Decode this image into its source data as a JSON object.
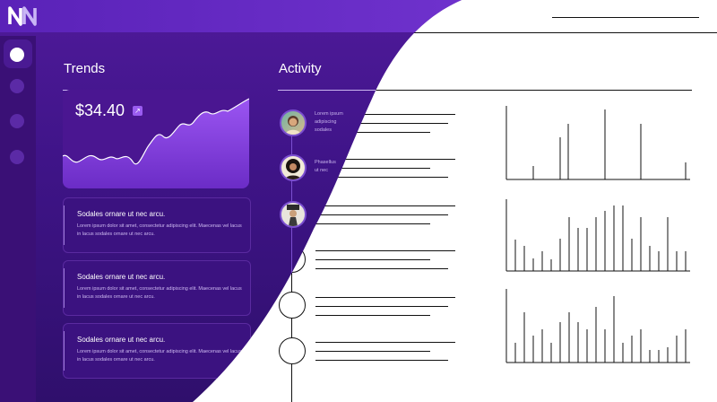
{
  "app": {
    "logo_text": "NN"
  },
  "brand": {
    "accent": "#7a3ad8",
    "dark": "#2f0f6c",
    "highlight": "#9a5cf0"
  },
  "sidebar": {
    "items": [
      {
        "icon": "home-icon",
        "active": true
      },
      {
        "icon": "chart-icon",
        "active": false
      },
      {
        "icon": "users-icon",
        "active": false
      },
      {
        "icon": "settings-icon",
        "active": false
      }
    ]
  },
  "trends": {
    "title": "Trends",
    "price": "$34.40",
    "badge_icon": "arrow-up-right-icon",
    "cards": [
      {
        "title": "Sodales ornare ut nec arcu.",
        "body": "Lorem ipsum dolor sit amet, consectetur adipiscing elit. Maecenas vel lacus in lacus sodales ornare ut nec arcu."
      },
      {
        "title": "Sodales ornare ut nec arcu.",
        "body": "Lorem ipsum dolor sit amet, consectetur adipiscing elit. Maecenas vel lacus in lacus sodales ornare ut nec arcu."
      },
      {
        "title": "Sodales ornare ut nec arcu.",
        "body": "Lorem ipsum dolor sit amet, consectetur adipiscing elit. Maecenas vel lacus in lacus sodales ornare ut nec arcu."
      }
    ]
  },
  "activity": {
    "title": "Activity",
    "items": [
      {
        "text_l1": "Lorem ipsum",
        "text_l2": "adipiscing",
        "text_l3": "sodales"
      },
      {
        "text_l1": "Phasellus",
        "text_l2": "ut nec",
        "text_l3": ""
      }
    ]
  }
}
